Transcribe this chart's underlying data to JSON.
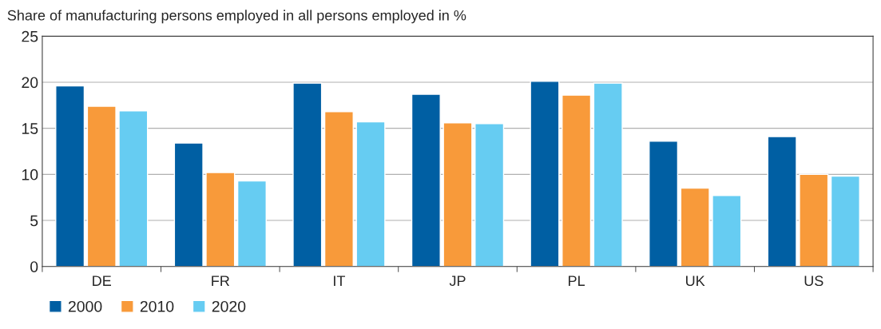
{
  "chart_data": {
    "type": "bar",
    "title": "Share of manufacturing persons employed in all persons employed in %",
    "categories": [
      "DE",
      "FR",
      "IT",
      "JP",
      "PL",
      "UK",
      "US"
    ],
    "series": [
      {
        "name": "2000",
        "color": "#005fa3",
        "values": [
          19.6,
          13.4,
          19.9,
          18.7,
          20.1,
          13.6,
          14.1
        ]
      },
      {
        "name": "2010",
        "color": "#f89a3a",
        "values": [
          17.4,
          10.2,
          16.8,
          15.6,
          18.6,
          8.5,
          10.0
        ]
      },
      {
        "name": "2020",
        "color": "#66ccf2",
        "values": [
          16.9,
          9.3,
          15.7,
          15.5,
          19.9,
          7.7,
          9.8
        ]
      }
    ],
    "ylim": [
      0,
      25
    ],
    "yticks": [
      0,
      5,
      10,
      15,
      20,
      25
    ],
    "grid": "y",
    "legend": "bottom left"
  }
}
